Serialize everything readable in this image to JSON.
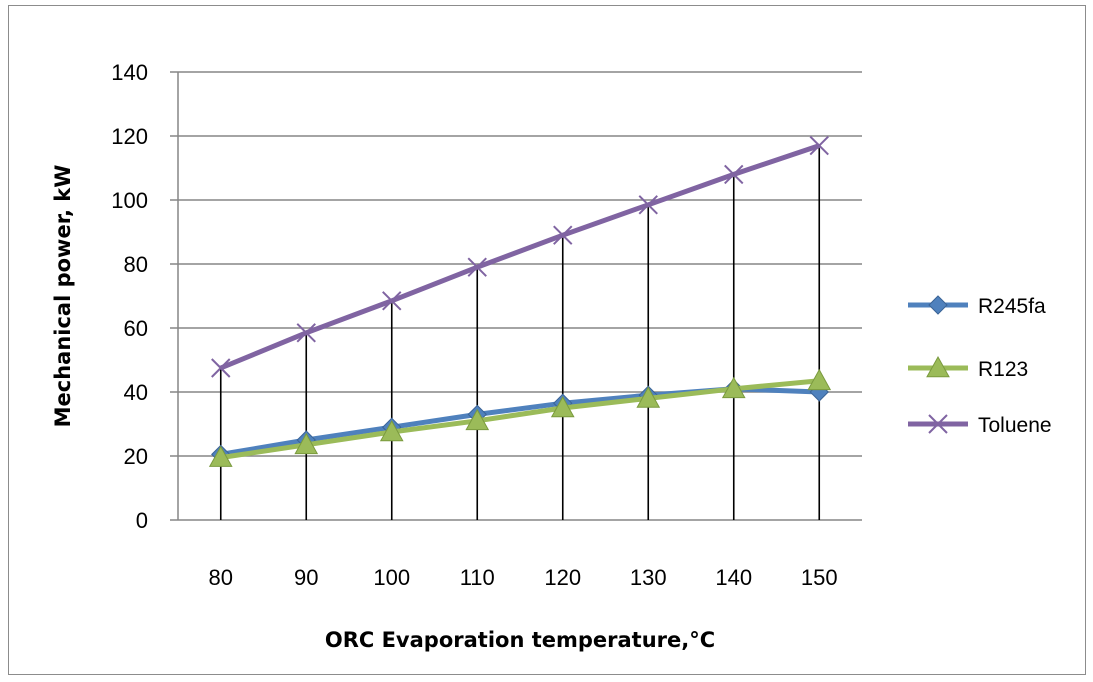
{
  "chart_data": {
    "type": "line",
    "xlabel": "ORC Evaporation temperature,°C",
    "ylabel": "Mechanical power, kW",
    "categories": [
      "80",
      "90",
      "100",
      "110",
      "120",
      "130",
      "140",
      "150"
    ],
    "ylim": [
      0,
      140
    ],
    "yticks": [
      0,
      20,
      40,
      60,
      80,
      100,
      120,
      140
    ],
    "grid": true,
    "drop_lines": true,
    "legend_position": "right",
    "series": [
      {
        "name": "R245fa",
        "values": [
          20.5,
          25,
          29,
          33,
          36.5,
          39,
          41,
          40
        ],
        "color": "#4f81bd",
        "marker": "diamond"
      },
      {
        "name": "R123",
        "values": [
          19.5,
          23.5,
          27.5,
          31,
          35,
          38,
          41,
          43.5
        ],
        "color": "#9bbb59",
        "marker": "triangle"
      },
      {
        "name": "Toluene",
        "values": [
          47.5,
          58.5,
          68.5,
          79,
          89,
          98.5,
          108,
          117
        ],
        "color": "#8064a2",
        "marker": "x"
      }
    ]
  }
}
